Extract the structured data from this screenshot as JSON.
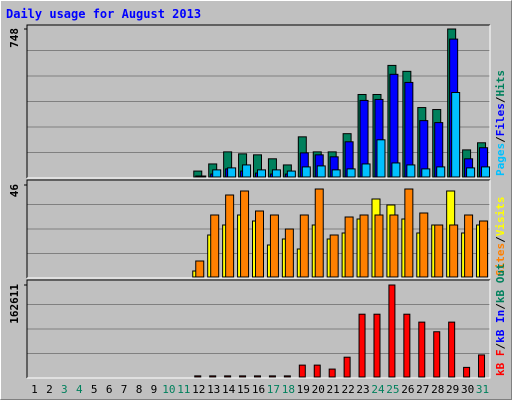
{
  "chart_data": [
    {
      "type": "bar",
      "title": "Daily usage for August 2013",
      "categories": [
        1,
        2,
        3,
        4,
        5,
        6,
        7,
        8,
        9,
        10,
        11,
        12,
        13,
        14,
        15,
        16,
        17,
        18,
        19,
        20,
        21,
        22,
        23,
        24,
        25,
        26,
        27,
        28,
        29,
        30,
        31
      ],
      "ylim": [
        0,
        748
      ],
      "yticks": [
        748
      ],
      "legend_separator": "/",
      "series": [
        {
          "name": "Hits",
          "color": "#00805c",
          "values": [
            0,
            0,
            0,
            0,
            0,
            0,
            0,
            0,
            0,
            0,
            0,
            30,
            66,
            127,
            117,
            112,
            92,
            61,
            203,
            127,
            127,
            219,
            417,
            417,
            564,
            534,
            351,
            341,
            748,
            137,
            173
          ]
        },
        {
          "name": "Files",
          "color": "#0000ff",
          "values": [
            0,
            0,
            0,
            0,
            0,
            0,
            0,
            0,
            0,
            0,
            0,
            5,
            15,
            41,
            30,
            20,
            15,
            15,
            122,
            112,
            102,
            178,
            387,
            392,
            519,
            478,
            285,
            275,
            697,
            92,
            148
          ]
        },
        {
          "name": "Pages",
          "color": "#00c0ff",
          "values": [
            0,
            0,
            0,
            0,
            0,
            0,
            0,
            0,
            0,
            0,
            0,
            5,
            36,
            46,
            61,
            36,
            36,
            30,
            51,
            56,
            36,
            41,
            66,
            188,
            71,
            61,
            41,
            51,
            427,
            46,
            51
          ]
        }
      ]
    },
    {
      "type": "bar",
      "categories": [
        1,
        2,
        3,
        4,
        5,
        6,
        7,
        8,
        9,
        10,
        11,
        12,
        13,
        14,
        15,
        16,
        17,
        18,
        19,
        20,
        21,
        22,
        23,
        24,
        25,
        26,
        27,
        28,
        29,
        30,
        31
      ],
      "ylim": [
        0,
        46
      ],
      "yticks": [
        46
      ],
      "legend_separator": "/",
      "series": [
        {
          "name": "Visits",
          "color": "#ffff00",
          "values": [
            0,
            0,
            0,
            0,
            0,
            0,
            0,
            0,
            0,
            0,
            0,
            3,
            21,
            26,
            31,
            28,
            16,
            19,
            14,
            26,
            19,
            22,
            29,
            39,
            36,
            29,
            22,
            26,
            43,
            22,
            26
          ]
        },
        {
          "name": "Sites",
          "color": "#ff8000",
          "values": [
            0,
            0,
            0,
            0,
            0,
            0,
            0,
            0,
            0,
            0,
            0,
            8,
            31,
            41,
            43,
            33,
            31,
            24,
            31,
            44,
            21,
            30,
            31,
            31,
            31,
            44,
            32,
            26,
            26,
            31,
            28
          ]
        }
      ]
    },
    {
      "type": "bar",
      "categories": [
        1,
        2,
        3,
        4,
        5,
        6,
        7,
        8,
        9,
        10,
        11,
        12,
        13,
        14,
        15,
        16,
        17,
        18,
        19,
        20,
        21,
        22,
        23,
        24,
        25,
        26,
        27,
        28,
        29,
        30,
        31
      ],
      "category_colors": [
        "#000000",
        "#000000",
        "#00805c",
        "#00805c",
        "#000000",
        "#000000",
        "#000000",
        "#000000",
        "#000000",
        "#00805c",
        "#00805c",
        "#000000",
        "#000000",
        "#000000",
        "#000000",
        "#000000",
        "#00805c",
        "#00805c",
        "#000000",
        "#000000",
        "#000000",
        "#000000",
        "#000000",
        "#00805c",
        "#00805c",
        "#000000",
        "#000000",
        "#000000",
        "#000000",
        "#000000",
        "#00805c"
      ],
      "ylim": [
        0,
        162611
      ],
      "yticks": [
        162611
      ],
      "legend_separator": "/",
      "series": [
        {
          "name": "kB Out",
          "color": "#00805c",
          "values": [
            0,
            0,
            0,
            0,
            0,
            0,
            0,
            0,
            0,
            0,
            0,
            0,
            0,
            0,
            0,
            0,
            0,
            0,
            0,
            0,
            0,
            0,
            0,
            0,
            0,
            0,
            0,
            0,
            0,
            0,
            0
          ]
        },
        {
          "name": "kB In",
          "color": "#0000ff",
          "values": [
            0,
            0,
            0,
            0,
            0,
            0,
            0,
            0,
            0,
            0,
            0,
            0,
            0,
            0,
            0,
            0,
            0,
            0,
            0,
            0,
            0,
            0,
            0,
            0,
            0,
            0,
            0,
            0,
            0,
            0,
            0
          ]
        },
        {
          "name": "kB F",
          "color": "#ff0000",
          "values": [
            0,
            0,
            0,
            0,
            0,
            0,
            0,
            0,
            0,
            0,
            0,
            2000,
            2000,
            2000,
            2000,
            2000,
            2000,
            2000,
            21000,
            21000,
            14000,
            35000,
            111000,
            111000,
            162611,
            111000,
            97000,
            80000,
            97000,
            17000,
            39000
          ]
        }
      ]
    }
  ]
}
